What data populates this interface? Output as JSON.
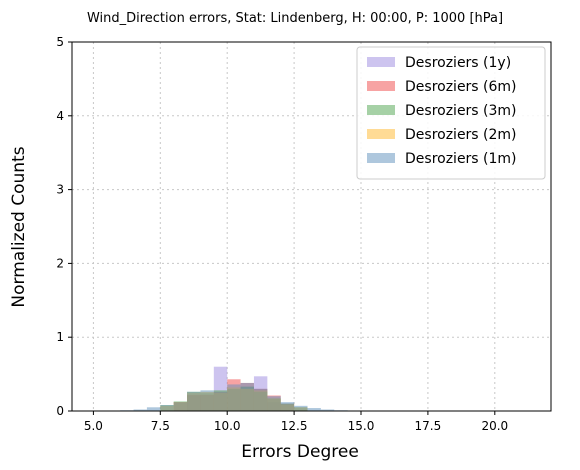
{
  "chart_data": {
    "type": "bar",
    "title": "Wind_Direction errors, Stat: Lindenberg, H: 00:00, P: 1000 [hPa]",
    "xlabel": "Errors Degree",
    "ylabel": "Normalized Counts",
    "xlim": [
      4.2,
      22.1
    ],
    "ylim": [
      0,
      5
    ],
    "xticks": [
      "5.0",
      "7.5",
      "10.0",
      "12.5",
      "15.0",
      "17.5",
      "20.0"
    ],
    "yticks": [
      "0",
      "1",
      "2",
      "3",
      "4",
      "5"
    ],
    "grid": true,
    "legend_position": "top-right",
    "bin_width": 0.5,
    "series": [
      {
        "name": "Desroziers (1y)",
        "color": "#9b8ae0",
        "bins": [
          {
            "x": 8.75,
            "y": 0.21
          },
          {
            "x": 9.25,
            "y": 0.22
          },
          {
            "x": 9.75,
            "y": 0.6
          },
          {
            "x": 10.25,
            "y": 0.29
          },
          {
            "x": 10.75,
            "y": 0.33
          },
          {
            "x": 11.25,
            "y": 0.47
          },
          {
            "x": 11.75,
            "y": 0.12
          }
        ]
      },
      {
        "name": "Desroziers (6m)",
        "color": "#f04848",
        "bins": [
          {
            "x": 8.25,
            "y": 0.12
          },
          {
            "x": 8.75,
            "y": 0.22
          },
          {
            "x": 9.25,
            "y": 0.22
          },
          {
            "x": 9.75,
            "y": 0.26
          },
          {
            "x": 10.25,
            "y": 0.43
          },
          {
            "x": 10.75,
            "y": 0.38
          },
          {
            "x": 11.25,
            "y": 0.3
          },
          {
            "x": 11.75,
            "y": 0.21
          },
          {
            "x": 12.25,
            "y": 0.1
          }
        ]
      },
      {
        "name": "Desroziers (3m)",
        "color": "#4ea44e",
        "bins": [
          {
            "x": 7.75,
            "y": 0.08
          },
          {
            "x": 8.25,
            "y": 0.13
          },
          {
            "x": 8.75,
            "y": 0.26
          },
          {
            "x": 9.25,
            "y": 0.25
          },
          {
            "x": 9.75,
            "y": 0.28
          },
          {
            "x": 10.25,
            "y": 0.3
          },
          {
            "x": 10.75,
            "y": 0.33
          },
          {
            "x": 11.25,
            "y": 0.26
          },
          {
            "x": 11.75,
            "y": 0.17
          },
          {
            "x": 12.25,
            "y": 0.1
          },
          {
            "x": 12.75,
            "y": 0.05
          }
        ]
      },
      {
        "name": "Desroziers (2m)",
        "color": "#ffb72b",
        "bins": [
          {
            "x": 7.75,
            "y": 0.07
          },
          {
            "x": 8.25,
            "y": 0.12
          },
          {
            "x": 8.75,
            "y": 0.25
          },
          {
            "x": 9.25,
            "y": 0.26
          },
          {
            "x": 9.75,
            "y": 0.25
          },
          {
            "x": 10.25,
            "y": 0.32
          },
          {
            "x": 10.75,
            "y": 0.3
          },
          {
            "x": 11.25,
            "y": 0.28
          },
          {
            "x": 11.75,
            "y": 0.17
          },
          {
            "x": 12.25,
            "y": 0.09
          },
          {
            "x": 12.75,
            "y": 0.05
          }
        ]
      },
      {
        "name": "Desroziers (1m)",
        "color": "#5d90bb",
        "bins": [
          {
            "x": 6.25,
            "y": 0.01
          },
          {
            "x": 6.75,
            "y": 0.02
          },
          {
            "x": 7.25,
            "y": 0.05
          },
          {
            "x": 7.75,
            "y": 0.08
          },
          {
            "x": 8.25,
            "y": 0.12
          },
          {
            "x": 8.75,
            "y": 0.26
          },
          {
            "x": 9.25,
            "y": 0.28
          },
          {
            "x": 9.75,
            "y": 0.26
          },
          {
            "x": 10.25,
            "y": 0.36
          },
          {
            "x": 10.75,
            "y": 0.38
          },
          {
            "x": 11.25,
            "y": 0.3
          },
          {
            "x": 11.75,
            "y": 0.2
          },
          {
            "x": 12.25,
            "y": 0.12
          },
          {
            "x": 12.75,
            "y": 0.07
          },
          {
            "x": 13.25,
            "y": 0.04
          },
          {
            "x": 13.75,
            "y": 0.02
          },
          {
            "x": 14.25,
            "y": 0.01
          }
        ]
      }
    ]
  }
}
